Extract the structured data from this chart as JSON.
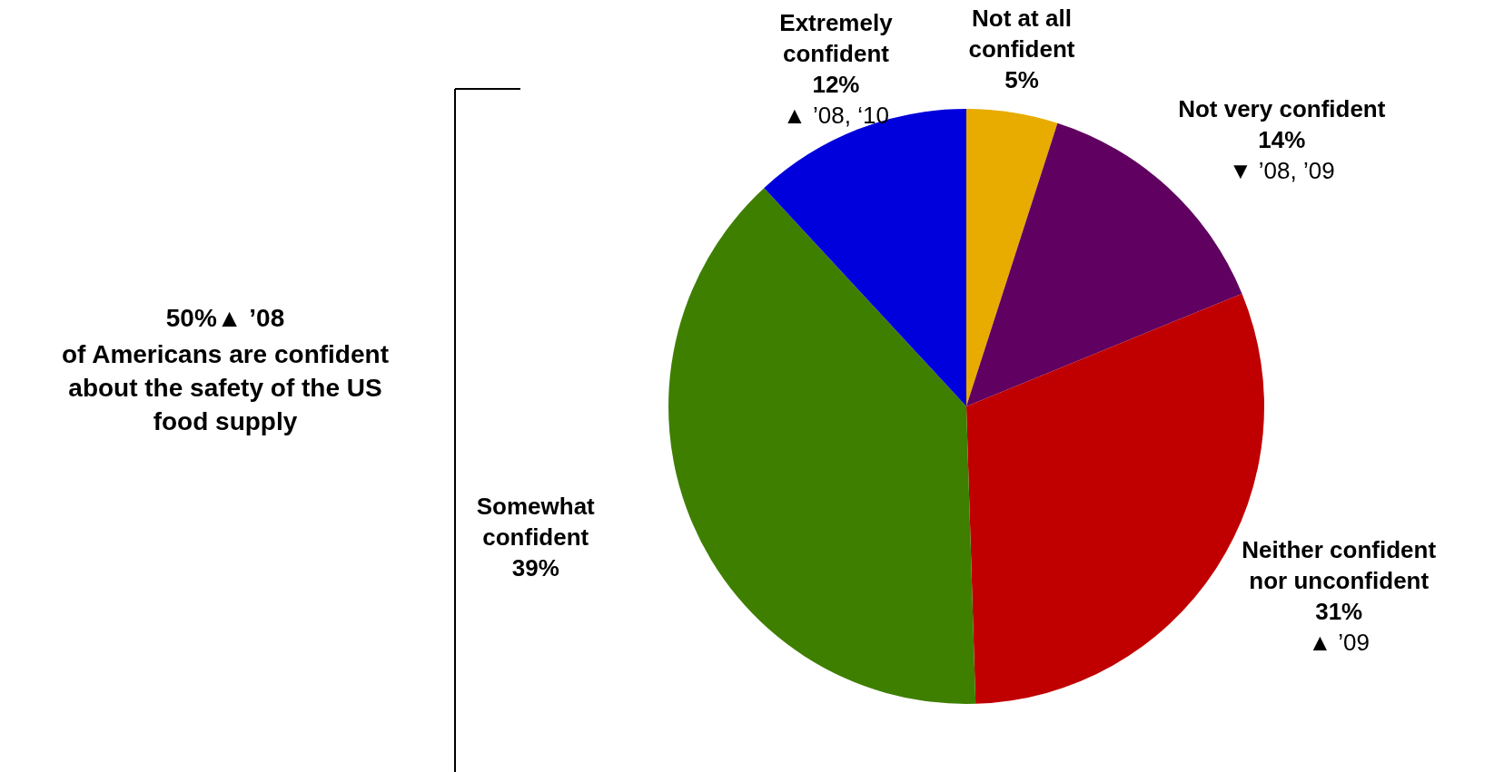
{
  "chart_data": {
    "type": "pie",
    "categories": [
      "Not at all confident",
      "Not very confident",
      "Neither confident nor unconfident",
      "Somewhat confident",
      "Extremely confident"
    ],
    "values": [
      5,
      14,
      31,
      39,
      12
    ],
    "colors": [
      "#e8ac00",
      "#600060",
      "#c00000",
      "#3f7f00",
      "#0000dd"
    ],
    "value_labels": [
      "5%",
      "14%",
      "31%",
      "39%",
      "12%"
    ],
    "annotations": [
      "50%▲ ’08",
      "of Americans are confident about the safety of the US food supply",
      {
        "text": "▼ ’08, ’09",
        "x": "Not very confident"
      },
      {
        "text": "▲ ’09",
        "x": "Neither confident nor unconfident"
      },
      {
        "text": "▲ ’08, ‘10",
        "x": "Extremely confident"
      }
    ]
  }
}
